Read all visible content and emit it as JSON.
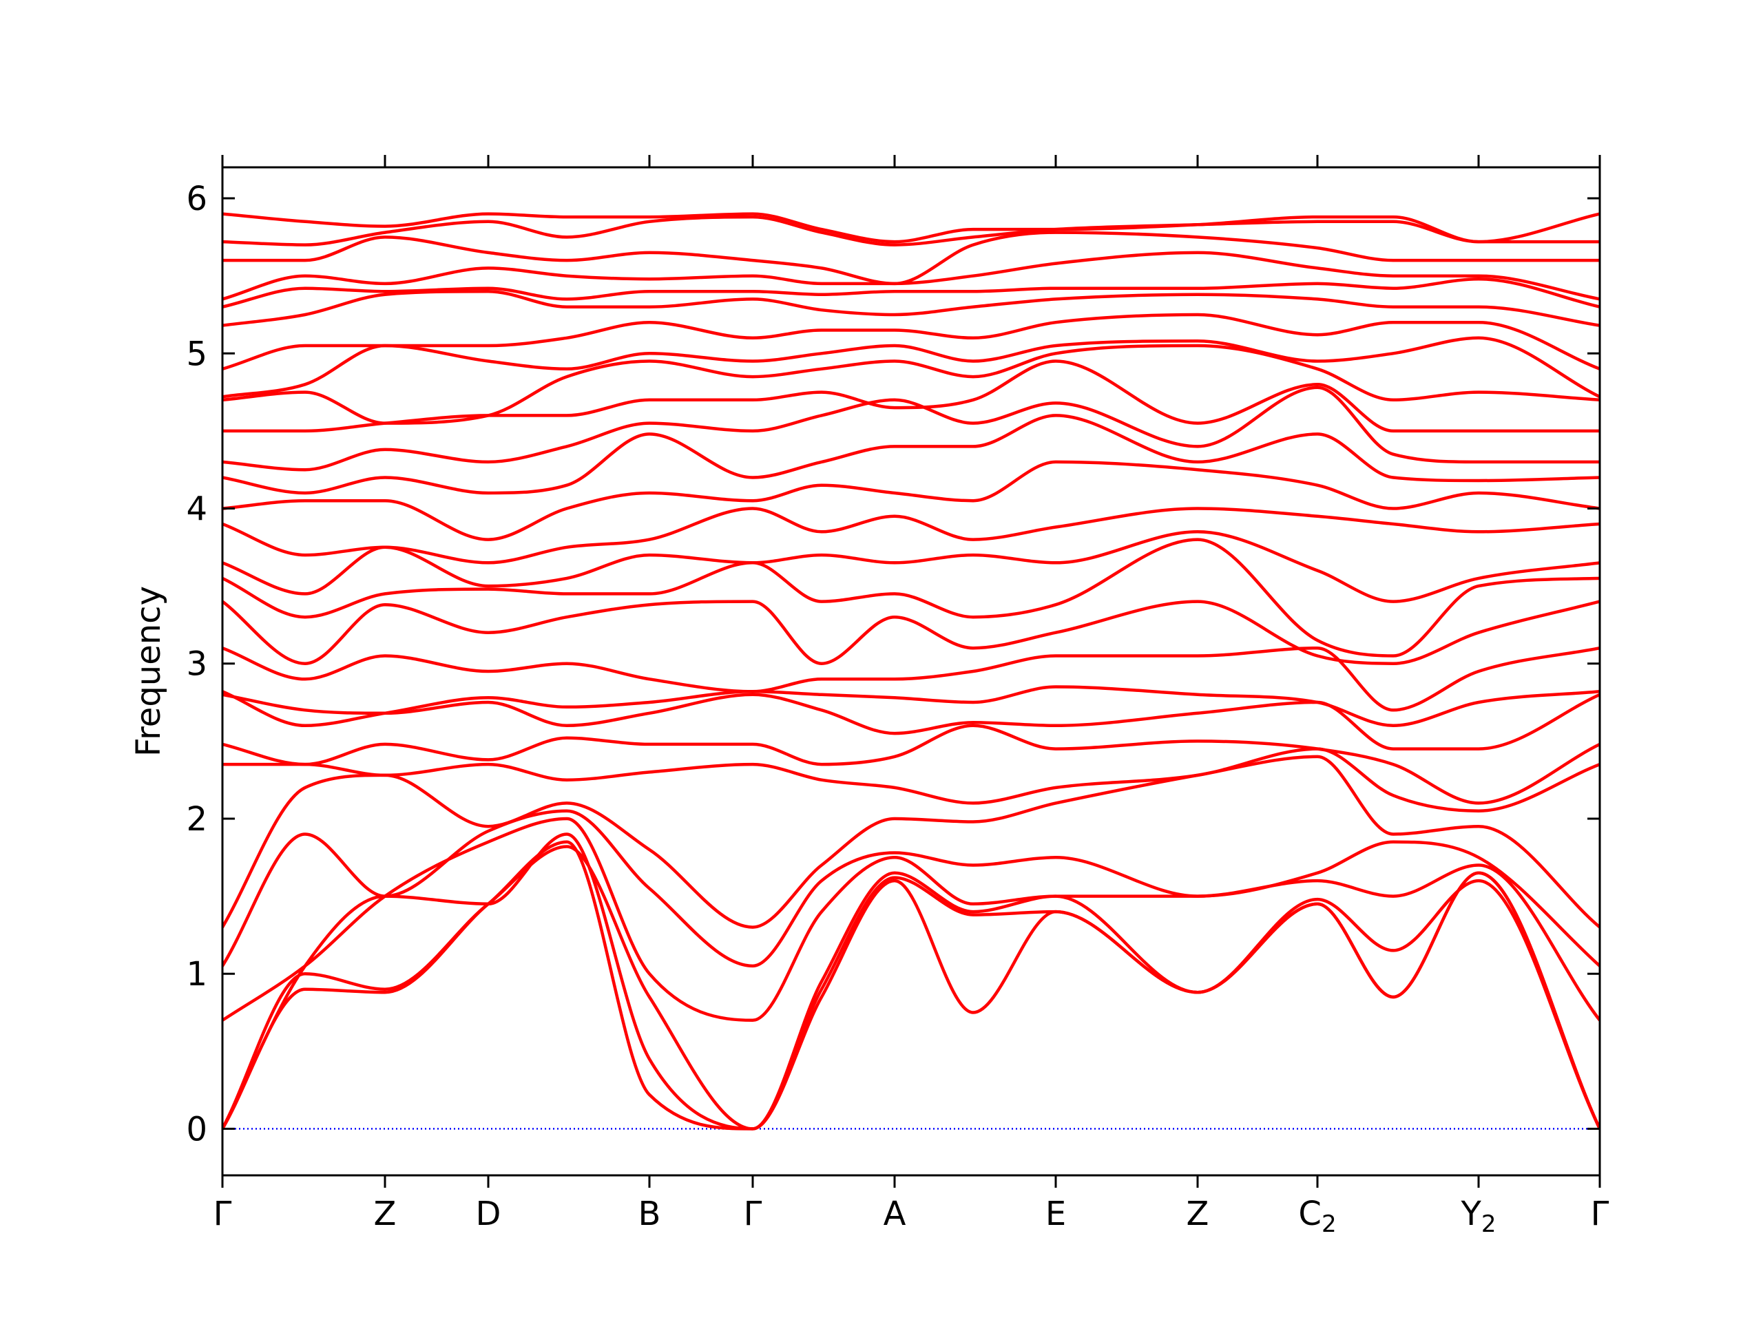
{
  "chart_data": {
    "type": "line",
    "title": "",
    "xlabel": "",
    "ylabel": "Frequency",
    "ylim": [
      -0.3,
      6.2
    ],
    "xlim": [
      0,
      10
    ],
    "yticks": [
      0,
      1,
      2,
      3,
      4,
      5,
      6
    ],
    "grid": false,
    "legend": "none",
    "high_symmetry_points": [
      {
        "label": "Γ",
        "sub": "",
        "x": 0
      },
      {
        "label": "Z",
        "sub": "",
        "x": 1.18
      },
      {
        "label": "D",
        "sub": "",
        "x": 1.93
      },
      {
        "label": "B",
        "sub": "",
        "x": 3.1
      },
      {
        "label": "Γ",
        "sub": "",
        "x": 3.85
      },
      {
        "label": "A",
        "sub": "",
        "x": 4.88
      },
      {
        "label": "E",
        "sub": "",
        "x": 6.05
      },
      {
        "label": "Z",
        "sub": "",
        "x": 7.08
      },
      {
        "label": "C",
        "sub": "2",
        "x": 7.95
      },
      {
        "label": "Y",
        "sub": "2",
        "x": 9.12
      },
      {
        "label": "Γ",
        "sub": "",
        "x": 10
      }
    ],
    "zero_line": {
      "y": 0,
      "style": "dotted",
      "color": "#0000ff"
    },
    "band_color": "#ff0000",
    "band_knots_x": [
      0,
      0.6,
      1.18,
      1.93,
      2.5,
      3.1,
      3.85,
      4.35,
      4.88,
      5.45,
      6.05,
      7.08,
      7.95,
      8.5,
      9.12,
      10
    ],
    "bands": [
      [
        0,
        0.9,
        0.88,
        1.45,
        1.85,
        0.22,
        0,
        0.85,
        1.6,
        0.75,
        1.4,
        0.88,
        1.45,
        0.85,
        1.65,
        0
      ],
      [
        0,
        1.0,
        0.9,
        1.45,
        1.82,
        0.85,
        0,
        0.9,
        1.62,
        1.38,
        1.4,
        0.88,
        1.45,
        0.85,
        1.65,
        0
      ],
      [
        0,
        1.05,
        1.5,
        1.45,
        1.9,
        0.45,
        0,
        0.95,
        1.65,
        1.4,
        1.5,
        0.88,
        1.48,
        1.15,
        1.6,
        0
      ],
      [
        0.7,
        1.05,
        1.5,
        1.85,
        2.0,
        1.0,
        0.7,
        1.4,
        1.75,
        1.45,
        1.5,
        1.5,
        1.6,
        1.5,
        1.7,
        0.7
      ],
      [
        1.05,
        1.9,
        1.5,
        1.92,
        2.05,
        1.55,
        1.05,
        1.6,
        1.78,
        1.7,
        1.75,
        1.5,
        1.65,
        1.85,
        1.75,
        1.05
      ],
      [
        1.3,
        2.2,
        2.28,
        1.95,
        2.1,
        1.8,
        1.3,
        1.7,
        2.0,
        1.98,
        2.1,
        2.28,
        2.4,
        1.9,
        1.95,
        1.3
      ],
      [
        2.35,
        2.35,
        2.28,
        2.35,
        2.25,
        2.3,
        2.35,
        2.25,
        2.2,
        2.1,
        2.2,
        2.28,
        2.45,
        2.15,
        2.05,
        2.35
      ],
      [
        2.48,
        2.35,
        2.48,
        2.38,
        2.52,
        2.48,
        2.48,
        2.35,
        2.4,
        2.6,
        2.45,
        2.5,
        2.45,
        2.35,
        2.1,
        2.48
      ],
      [
        2.8,
        2.7,
        2.68,
        2.75,
        2.6,
        2.68,
        2.8,
        2.7,
        2.55,
        2.62,
        2.6,
        2.68,
        2.75,
        2.45,
        2.45,
        2.8
      ],
      [
        2.82,
        2.6,
        2.68,
        2.78,
        2.72,
        2.75,
        2.82,
        2.8,
        2.78,
        2.75,
        2.85,
        2.8,
        2.75,
        2.6,
        2.75,
        2.82
      ],
      [
        3.1,
        2.9,
        3.05,
        2.95,
        3.0,
        2.9,
        2.82,
        2.9,
        2.9,
        2.95,
        3.05,
        3.05,
        3.1,
        2.7,
        2.95,
        3.1
      ],
      [
        3.4,
        3.0,
        3.38,
        3.2,
        3.3,
        3.38,
        3.4,
        3.0,
        3.3,
        3.1,
        3.2,
        3.4,
        3.05,
        3.0,
        3.2,
        3.4
      ],
      [
        3.55,
        3.3,
        3.45,
        3.48,
        3.45,
        3.45,
        3.65,
        3.4,
        3.45,
        3.3,
        3.38,
        3.8,
        3.15,
        3.05,
        3.5,
        3.55
      ],
      [
        3.65,
        3.45,
        3.75,
        3.5,
        3.55,
        3.7,
        3.65,
        3.7,
        3.65,
        3.7,
        3.65,
        3.85,
        3.6,
        3.4,
        3.55,
        3.65
      ],
      [
        3.9,
        3.7,
        3.75,
        3.65,
        3.75,
        3.8,
        4.0,
        3.85,
        3.95,
        3.8,
        3.88,
        4.0,
        3.95,
        3.9,
        3.85,
        3.9
      ],
      [
        4.0,
        4.05,
        4.05,
        3.8,
        4.0,
        4.1,
        4.05,
        4.15,
        4.1,
        4.05,
        4.3,
        4.25,
        4.15,
        4.0,
        4.1,
        4.0
      ],
      [
        4.2,
        4.1,
        4.2,
        4.1,
        4.15,
        4.48,
        4.2,
        4.3,
        4.4,
        4.4,
        4.6,
        4.3,
        4.48,
        4.2,
        4.18,
        4.2
      ],
      [
        4.3,
        4.25,
        4.38,
        4.3,
        4.4,
        4.55,
        4.5,
        4.6,
        4.7,
        4.55,
        4.68,
        4.4,
        4.78,
        4.35,
        4.3,
        4.3
      ],
      [
        4.5,
        4.5,
        4.55,
        4.6,
        4.6,
        4.7,
        4.7,
        4.75,
        4.65,
        4.7,
        4.95,
        4.55,
        4.8,
        4.5,
        4.5,
        4.5
      ],
      [
        4.7,
        4.75,
        4.55,
        4.6,
        4.85,
        4.95,
        4.85,
        4.9,
        4.95,
        4.85,
        5.0,
        5.05,
        4.9,
        4.7,
        4.75,
        4.7
      ],
      [
        4.72,
        4.8,
        5.05,
        4.95,
        4.9,
        5.0,
        4.95,
        5.0,
        5.05,
        4.95,
        5.05,
        5.08,
        4.95,
        5.0,
        5.1,
        4.72
      ],
      [
        4.9,
        5.05,
        5.05,
        5.05,
        5.1,
        5.2,
        5.1,
        5.15,
        5.15,
        5.1,
        5.2,
        5.25,
        5.12,
        5.2,
        5.2,
        4.9
      ],
      [
        5.18,
        5.25,
        5.38,
        5.4,
        5.3,
        5.3,
        5.35,
        5.28,
        5.25,
        5.3,
        5.35,
        5.38,
        5.35,
        5.3,
        5.3,
        5.18
      ],
      [
        5.3,
        5.42,
        5.4,
        5.42,
        5.35,
        5.4,
        5.4,
        5.38,
        5.4,
        5.4,
        5.42,
        5.42,
        5.45,
        5.42,
        5.48,
        5.3
      ],
      [
        5.35,
        5.5,
        5.45,
        5.55,
        5.5,
        5.48,
        5.5,
        5.45,
        5.45,
        5.5,
        5.58,
        5.65,
        5.55,
        5.5,
        5.5,
        5.35
      ],
      [
        5.6,
        5.6,
        5.75,
        5.65,
        5.6,
        5.65,
        5.6,
        5.55,
        5.45,
        5.7,
        5.78,
        5.75,
        5.68,
        5.6,
        5.6,
        5.6
      ],
      [
        5.72,
        5.7,
        5.78,
        5.85,
        5.75,
        5.85,
        5.88,
        5.78,
        5.7,
        5.75,
        5.8,
        5.83,
        5.85,
        5.85,
        5.72,
        5.72
      ],
      [
        5.9,
        5.85,
        5.82,
        5.9,
        5.88,
        5.88,
        5.9,
        5.8,
        5.72,
        5.8,
        5.8,
        5.83,
        5.88,
        5.88,
        5.72,
        5.9
      ]
    ]
  }
}
